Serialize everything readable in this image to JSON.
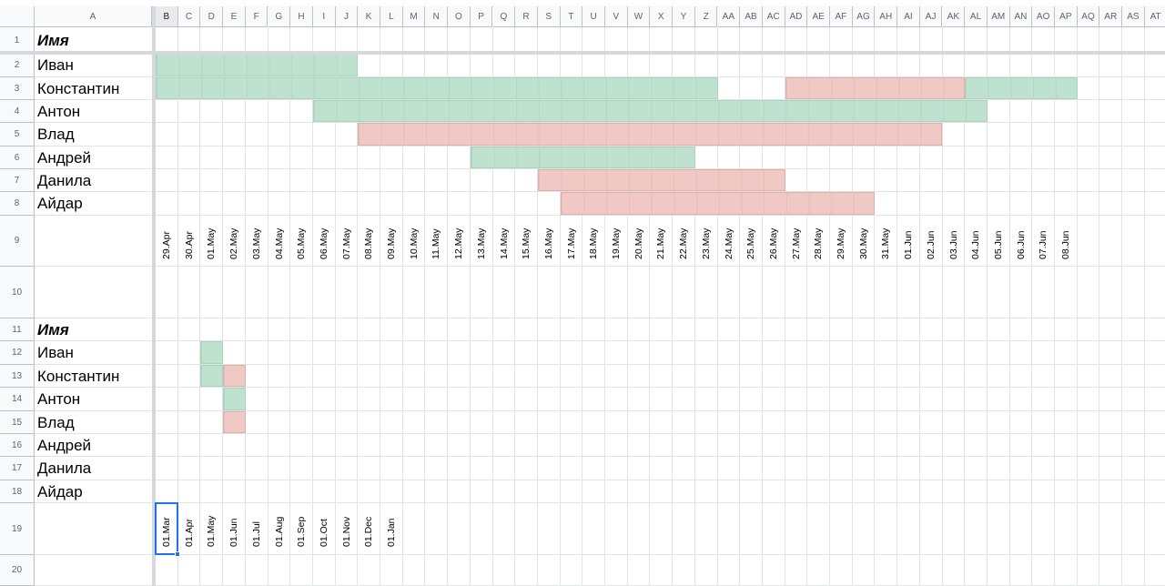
{
  "columns": [
    "A",
    "B",
    "C",
    "D",
    "E",
    "F",
    "G",
    "H",
    "I",
    "J",
    "K",
    "L",
    "M",
    "N",
    "O",
    "P",
    "Q",
    "R",
    "S",
    "T",
    "U",
    "V",
    "W",
    "X",
    "Y",
    "Z",
    "AA",
    "AB",
    "AC",
    "AD",
    "AE",
    "AF",
    "AG",
    "AH",
    "AI",
    "AJ",
    "AK",
    "AL",
    "AM",
    "AN",
    "AO",
    "AP",
    "AQ",
    "AR",
    "AS",
    "AT"
  ],
  "rows": [
    "1",
    "2",
    "3",
    "4",
    "5",
    "6",
    "7",
    "8",
    "9",
    "10",
    "11",
    "12",
    "13",
    "14",
    "15",
    "16",
    "17",
    "18",
    "19",
    "20"
  ],
  "table1": {
    "header": "Имя",
    "names": [
      "Иван",
      "Константин",
      "Антон",
      "Влад",
      "Андрей",
      "Данила",
      "Айдар"
    ],
    "dates": [
      "29.Apr",
      "30.Apr",
      "01.May",
      "02.May",
      "03.May",
      "04.May",
      "05.May",
      "06.May",
      "07.May",
      "08.May",
      "09.May",
      "10.May",
      "11.May",
      "12.May",
      "13.May",
      "14.May",
      "15.May",
      "16.May",
      "17.May",
      "18.May",
      "19.May",
      "20.May",
      "21.May",
      "22.May",
      "23.May",
      "24.May",
      "25.May",
      "26.May",
      "27.May",
      "28.May",
      "29.May",
      "30.May",
      "31.May",
      "01.Jun",
      "02.Jun",
      "03.Jun",
      "04.Jun",
      "05.Jun",
      "06.Jun",
      "07.Jun",
      "08.Jun"
    ],
    "bars": [
      {
        "row": 0,
        "start": "29.Apr",
        "end": "07.May",
        "color": "green"
      },
      {
        "row": 1,
        "start": "29.Apr",
        "end": "23.May",
        "color": "green"
      },
      {
        "row": 1,
        "start": "27.May",
        "end": "03.Jun",
        "color": "red"
      },
      {
        "row": 1,
        "start": "04.Jun",
        "end": "08.Jun",
        "color": "green"
      },
      {
        "row": 2,
        "start": "06.May",
        "end": "04.Jun",
        "color": "green"
      },
      {
        "row": 3,
        "start": "08.May",
        "end": "02.Jun",
        "color": "red"
      },
      {
        "row": 4,
        "start": "13.May",
        "end": "22.May",
        "color": "green"
      },
      {
        "row": 5,
        "start": "16.May",
        "end": "26.May",
        "color": "red"
      },
      {
        "row": 6,
        "start": "17.May",
        "end": "30.May",
        "color": "red"
      }
    ]
  },
  "table2": {
    "header": "Имя",
    "names": [
      "Иван",
      "Константин",
      "Антон",
      "Влад",
      "Андрей",
      "Данила",
      "Айдар"
    ],
    "dates": [
      "01.Mar",
      "01.Apr",
      "01.May",
      "01.Jun",
      "01.Jul",
      "01.Aug",
      "01.Sep",
      "01.Oct",
      "01.Nov",
      "01.Dec",
      "01.Jan"
    ],
    "bars": [
      {
        "row": 0,
        "start": "01.May",
        "end": "01.May",
        "color": "green"
      },
      {
        "row": 1,
        "start": "01.May",
        "end": "01.May",
        "color": "green"
      },
      {
        "row": 1,
        "start": "01.Jun",
        "end": "01.Jun",
        "color": "red"
      },
      {
        "row": 2,
        "start": "01.Jun",
        "end": "01.Jun",
        "color": "green"
      },
      {
        "row": 3,
        "start": "01.Jun",
        "end": "01.Jun",
        "color": "red"
      }
    ]
  },
  "selection": {
    "column": "B",
    "row": "19"
  },
  "colors": {
    "green": "#bfe1d0",
    "red": "#f0c9c5",
    "selection": "#1a73e8"
  }
}
